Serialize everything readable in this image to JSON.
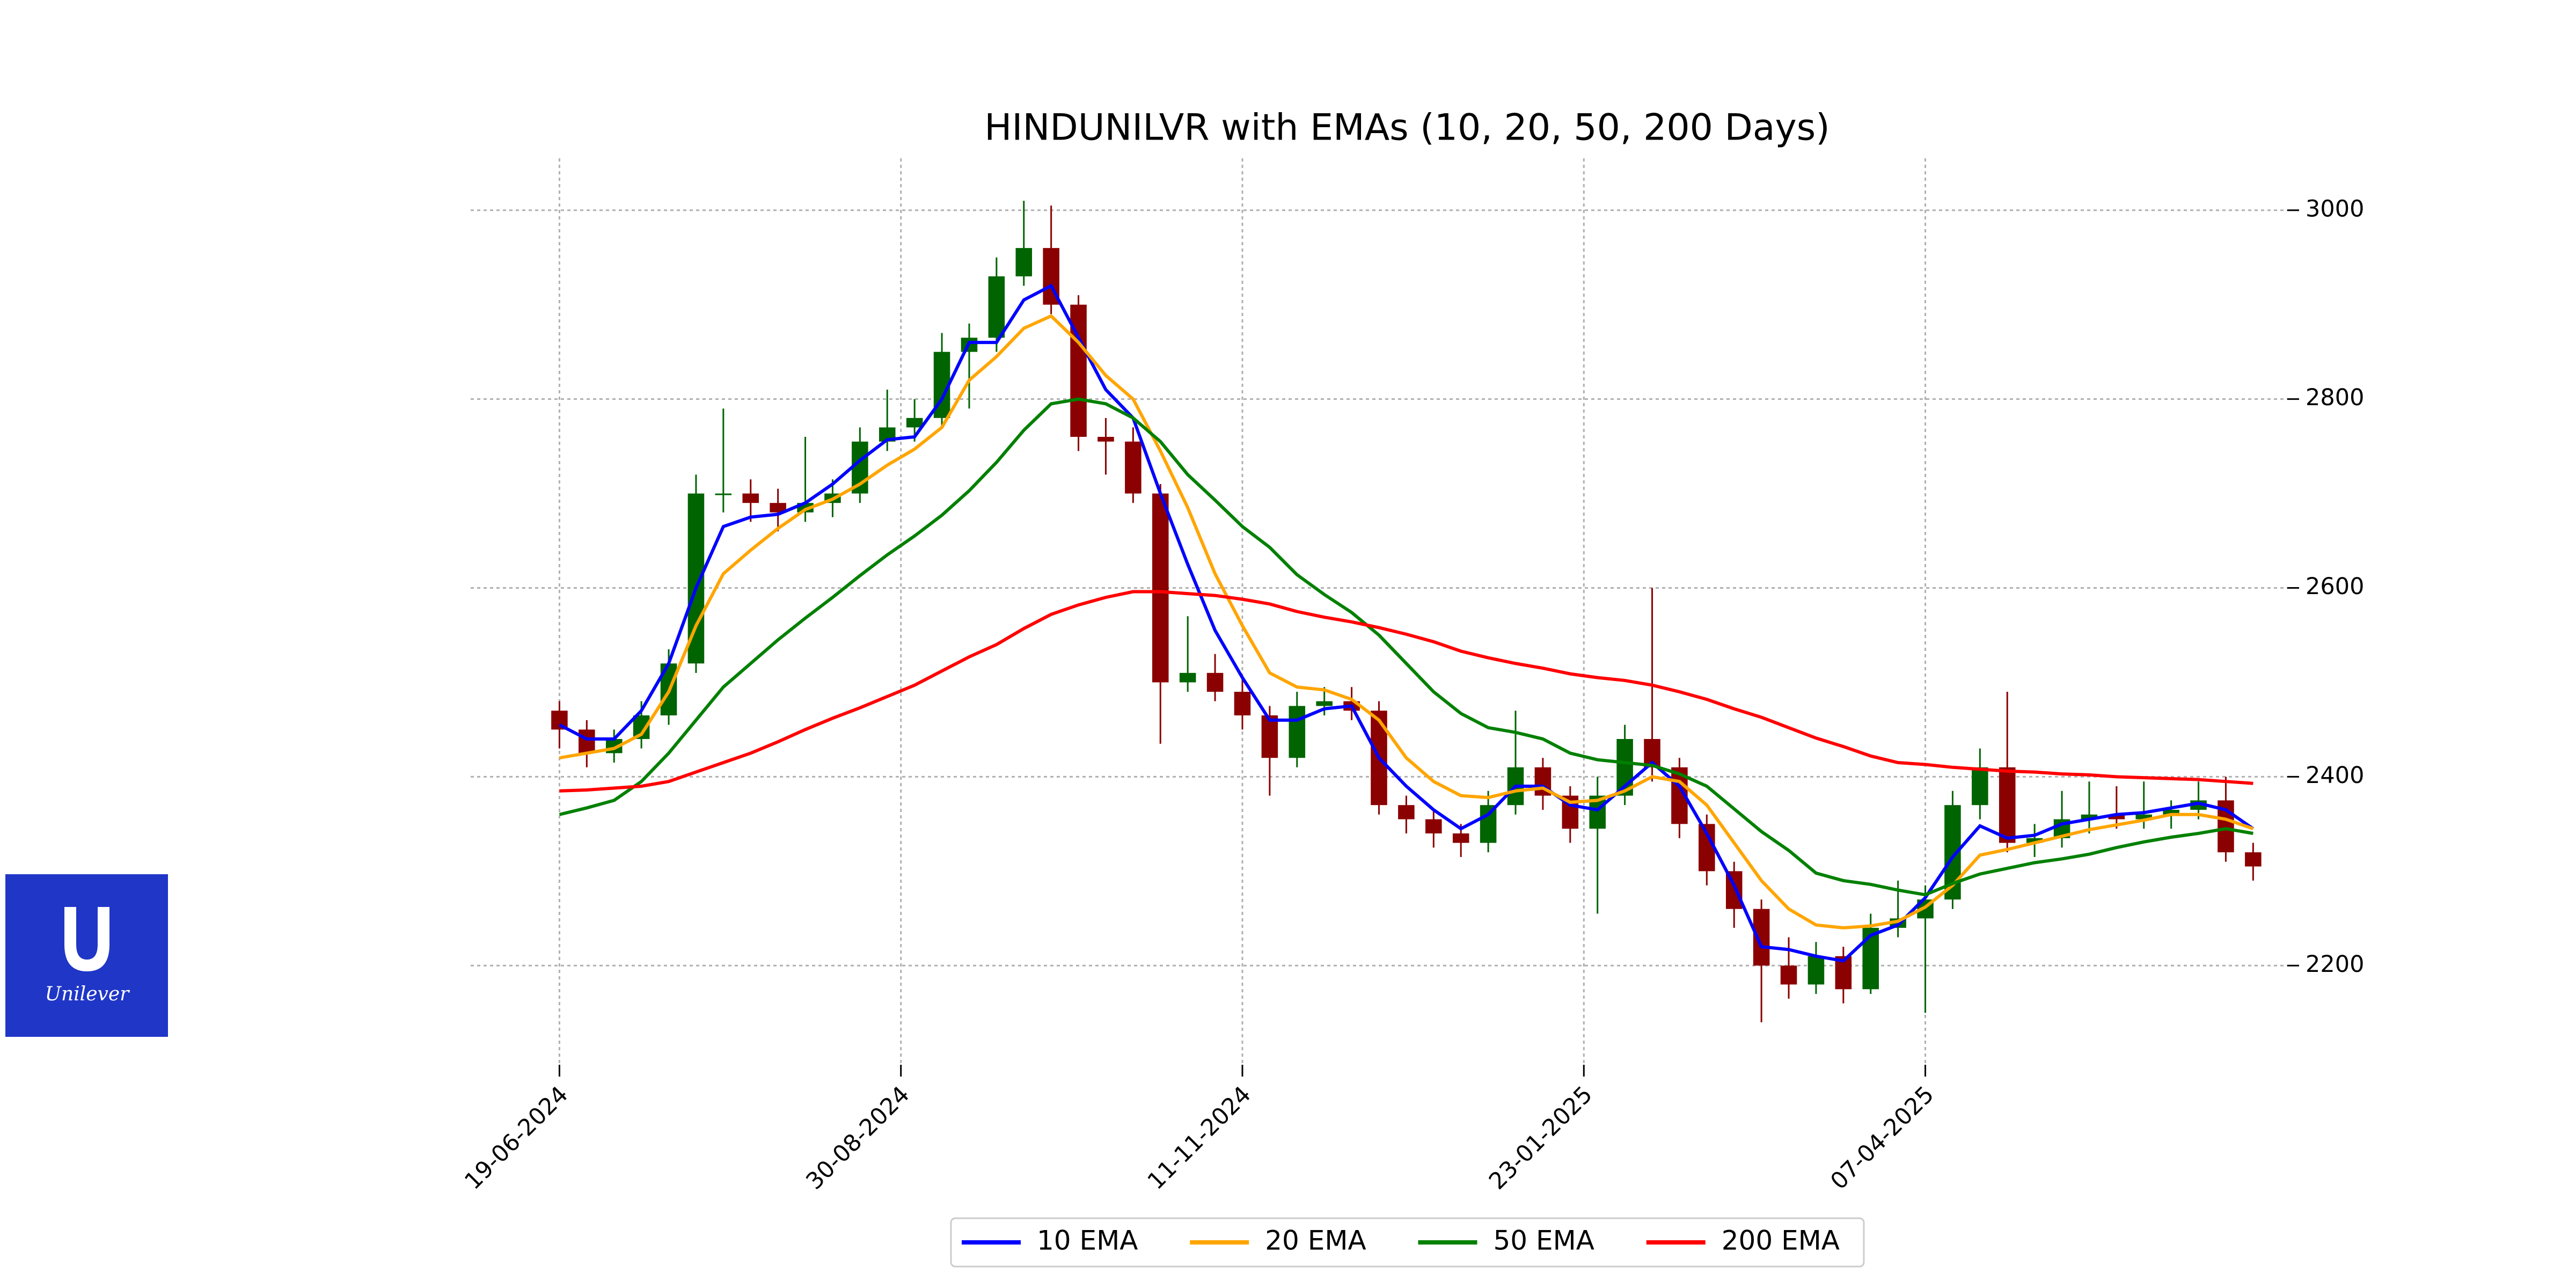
{
  "chart_data": {
    "type": "candlestick",
    "title": "HINDUNILVR with EMAs (10, 20, 50, 200 Days)",
    "x": [
      0,
      4,
      8,
      12,
      16,
      20,
      24,
      28,
      32,
      36,
      40,
      44,
      48,
      52,
      56,
      60,
      64,
      68,
      72,
      76,
      80,
      84,
      88,
      92,
      96,
      100,
      104,
      108,
      112,
      116,
      120,
      124,
      128,
      132,
      136,
      140,
      144,
      148,
      152,
      156,
      160,
      164,
      168,
      172,
      176,
      180,
      184,
      188,
      192,
      196,
      200,
      204,
      208,
      212,
      216,
      220,
      224,
      228,
      232,
      236,
      240,
      244,
      248
    ],
    "candles": {
      "open": [
        2470,
        2450,
        2425,
        2440,
        2465,
        2520,
        2700,
        2700,
        2690,
        2680,
        2690,
        2700,
        2755,
        2770,
        2780,
        2850,
        2865,
        2930,
        2960,
        2900,
        2760,
        2755,
        2700,
        2500,
        2510,
        2490,
        2465,
        2420,
        2475,
        2480,
        2470,
        2370,
        2355,
        2340,
        2330,
        2370,
        2410,
        2380,
        2345,
        2380,
        2440,
        2410,
        2350,
        2300,
        2260,
        2200,
        2180,
        2210,
        2175,
        2240,
        2250,
        2270,
        2370,
        2410,
        2330,
        2335,
        2355,
        2360,
        2355,
        2360,
        2365,
        2375,
        2320
      ],
      "high": [
        2480,
        2460,
        2450,
        2480,
        2535,
        2720,
        2790,
        2715,
        2705,
        2760,
        2715,
        2770,
        2810,
        2800,
        2870,
        2880,
        2950,
        3010,
        3005,
        2910,
        2780,
        2770,
        2710,
        2570,
        2530,
        2505,
        2475,
        2490,
        2495,
        2495,
        2480,
        2380,
        2365,
        2350,
        2385,
        2470,
        2420,
        2390,
        2400,
        2455,
        2600,
        2420,
        2360,
        2310,
        2270,
        2230,
        2225,
        2220,
        2255,
        2290,
        2285,
        2385,
        2430,
        2490,
        2350,
        2385,
        2395,
        2390,
        2395,
        2375,
        2395,
        2400,
        2330
      ],
      "low": [
        2430,
        2410,
        2415,
        2430,
        2455,
        2510,
        2680,
        2670,
        2660,
        2670,
        2675,
        2690,
        2745,
        2755,
        2770,
        2790,
        2850,
        2920,
        2890,
        2745,
        2720,
        2690,
        2435,
        2490,
        2480,
        2450,
        2380,
        2410,
        2465,
        2460,
        2360,
        2340,
        2325,
        2315,
        2320,
        2360,
        2365,
        2330,
        2255,
        2370,
        2395,
        2335,
        2285,
        2240,
        2140,
        2165,
        2170,
        2160,
        2170,
        2230,
        2150,
        2260,
        2355,
        2320,
        2315,
        2325,
        2340,
        2345,
        2345,
        2345,
        2355,
        2310,
        2290
      ],
      "close": [
        2450,
        2425,
        2440,
        2465,
        2520,
        2700,
        2700,
        2690,
        2680,
        2690,
        2700,
        2755,
        2770,
        2780,
        2850,
        2865,
        2930,
        2960,
        2900,
        2760,
        2755,
        2700,
        2500,
        2510,
        2490,
        2465,
        2420,
        2475,
        2480,
        2470,
        2370,
        2355,
        2340,
        2330,
        2370,
        2410,
        2380,
        2345,
        2380,
        2440,
        2410,
        2350,
        2300,
        2260,
        2200,
        2180,
        2210,
        2175,
        2240,
        2250,
        2270,
        2370,
        2410,
        2330,
        2335,
        2355,
        2360,
        2355,
        2360,
        2365,
        2375,
        2320,
        2305
      ],
      "up_color": "#006400",
      "down_color": "#8b0000"
    },
    "series": [
      {
        "name": "10 EMA",
        "color": "#0000ff",
        "values": [
          2455,
          2440,
          2440,
          2470,
          2520,
          2600,
          2665,
          2675,
          2678,
          2690,
          2710,
          2735,
          2757,
          2760,
          2800,
          2860,
          2860,
          2905,
          2920,
          2865,
          2810,
          2780,
          2700,
          2625,
          2555,
          2505,
          2460,
          2460,
          2472,
          2475,
          2420,
          2390,
          2365,
          2345,
          2360,
          2390,
          2390,
          2370,
          2365,
          2390,
          2415,
          2390,
          2340,
          2285,
          2220,
          2217,
          2210,
          2205,
          2232,
          2243,
          2272,
          2315,
          2348,
          2335,
          2338,
          2350,
          2355,
          2360,
          2362,
          2367,
          2372,
          2365,
          2345
        ]
      },
      {
        "name": "20 EMA",
        "color": "#ffa500",
        "values": [
          2420,
          2425,
          2430,
          2445,
          2490,
          2560,
          2615,
          2640,
          2663,
          2683,
          2694,
          2710,
          2730,
          2747,
          2770,
          2820,
          2845,
          2875,
          2888,
          2860,
          2825,
          2800,
          2745,
          2685,
          2615,
          2560,
          2510,
          2495,
          2492,
          2482,
          2460,
          2420,
          2395,
          2380,
          2378,
          2385,
          2388,
          2373,
          2375,
          2385,
          2400,
          2395,
          2370,
          2330,
          2290,
          2260,
          2243,
          2240,
          2242,
          2247,
          2262,
          2285,
          2317,
          2323,
          2330,
          2337,
          2344,
          2349,
          2354,
          2360,
          2360,
          2355,
          2345
        ]
      },
      {
        "name": "50 EMA",
        "color": "#008000",
        "values": [
          2360,
          2367,
          2375,
          2395,
          2425,
          2460,
          2495,
          2520,
          2545,
          2568,
          2590,
          2613,
          2635,
          2655,
          2677,
          2703,
          2733,
          2767,
          2795,
          2800,
          2795,
          2780,
          2755,
          2720,
          2693,
          2665,
          2643,
          2614,
          2593,
          2574,
          2550,
          2520,
          2490,
          2467,
          2452,
          2447,
          2440,
          2425,
          2418,
          2415,
          2412,
          2403,
          2390,
          2366,
          2342,
          2322,
          2298,
          2290,
          2286,
          2280,
          2275,
          2287,
          2297,
          2303,
          2309,
          2313,
          2318,
          2325,
          2331,
          2336,
          2340,
          2345,
          2340
        ]
      },
      {
        "name": "200 EMA",
        "color": "#ff0000",
        "values": [
          2385,
          2386,
          2388,
          2390,
          2395,
          2405,
          2415,
          2425,
          2437,
          2450,
          2462,
          2473,
          2485,
          2497,
          2512,
          2527,
          2540,
          2557,
          2572,
          2582,
          2590,
          2596,
          2596,
          2594,
          2592,
          2588,
          2583,
          2575,
          2569,
          2564,
          2558,
          2551,
          2543,
          2533,
          2526,
          2520,
          2515,
          2509,
          2505,
          2502,
          2497,
          2490,
          2482,
          2472,
          2463,
          2452,
          2441,
          2432,
          2422,
          2415,
          2413,
          2410,
          2408,
          2406,
          2405,
          2403,
          2402,
          2400,
          2399,
          2398,
          2397,
          2395,
          2393
        ]
      }
    ],
    "xlim": [
      -13,
      253
    ],
    "xticks": [
      {
        "value": 0,
        "label": "19-06-2024"
      },
      {
        "value": 50,
        "label": "30-08-2024"
      },
      {
        "value": 100,
        "label": "11-11-2024"
      },
      {
        "value": 150,
        "label": "23-01-2025"
      },
      {
        "value": 200,
        "label": "07-04-2025"
      }
    ],
    "ylim": [
      2095,
      3055
    ],
    "yticks": [
      2200,
      2400,
      2600,
      2800,
      3000
    ],
    "grid": true,
    "legend": "bottom"
  },
  "logo": {
    "text": "Unilever"
  }
}
